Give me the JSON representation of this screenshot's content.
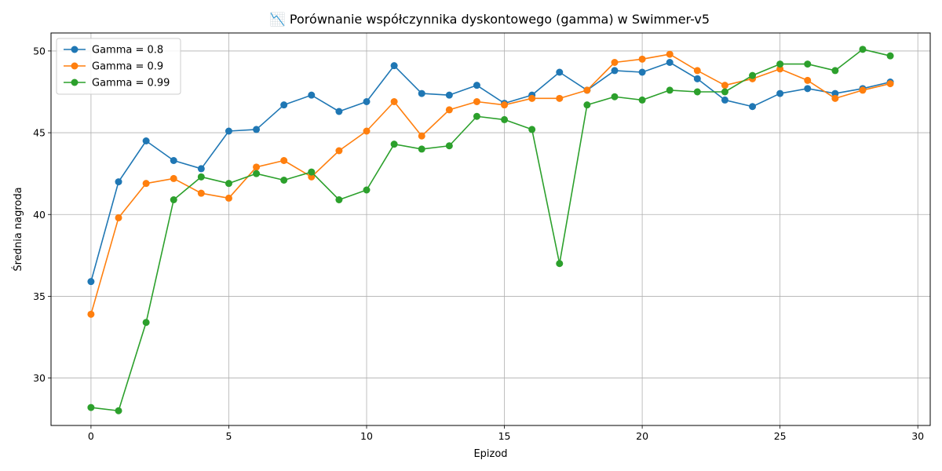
{
  "chart_data": {
    "type": "line",
    "title": "📉 Porównanie współczynnika dyskontowego (gamma) w Swimmer-v5",
    "xlabel": "Epizod",
    "ylabel": "Średnia nagroda",
    "xlim": [
      -1.45,
      30.45
    ],
    "ylim": [
      27.1,
      51.1
    ],
    "xticks": [
      0,
      5,
      10,
      15,
      20,
      25,
      30
    ],
    "yticks": [
      30,
      35,
      40,
      45,
      50
    ],
    "grid": true,
    "legend_position": "top-left",
    "x": [
      0,
      1,
      2,
      3,
      4,
      5,
      6,
      7,
      8,
      9,
      10,
      11,
      12,
      13,
      14,
      15,
      16,
      17,
      18,
      19,
      20,
      21,
      22,
      23,
      24,
      25,
      26,
      27,
      28,
      29
    ],
    "series": [
      {
        "name": "Gamma = 0.8",
        "color": "#1f77b4",
        "values": [
          35.9,
          42.0,
          44.5,
          43.3,
          42.8,
          45.1,
          45.2,
          46.7,
          47.3,
          46.3,
          46.9,
          49.1,
          47.4,
          47.3,
          47.9,
          46.8,
          47.3,
          48.7,
          47.6,
          48.8,
          48.7,
          49.3,
          48.3,
          47.0,
          46.6,
          47.4,
          47.7,
          47.4,
          47.7,
          48.1
        ]
      },
      {
        "name": "Gamma = 0.9",
        "color": "#ff7f0e",
        "values": [
          33.9,
          39.8,
          41.9,
          42.2,
          41.3,
          41.0,
          42.9,
          43.3,
          42.3,
          43.9,
          45.1,
          46.9,
          44.8,
          46.4,
          46.9,
          46.7,
          47.1,
          47.1,
          47.6,
          49.3,
          49.5,
          49.8,
          48.8,
          47.9,
          48.3,
          48.9,
          48.2,
          47.1,
          47.6,
          48.0
        ]
      },
      {
        "name": "Gamma = 0.99",
        "color": "#2ca02c",
        "values": [
          28.2,
          28.0,
          33.4,
          40.9,
          42.3,
          41.9,
          42.5,
          42.1,
          42.6,
          40.9,
          41.5,
          44.3,
          44.0,
          44.2,
          46.0,
          45.8,
          45.2,
          37.0,
          46.7,
          47.2,
          47.0,
          47.6,
          47.5,
          47.5,
          48.5,
          49.2,
          49.2,
          48.8,
          50.1,
          49.7
        ]
      }
    ]
  }
}
